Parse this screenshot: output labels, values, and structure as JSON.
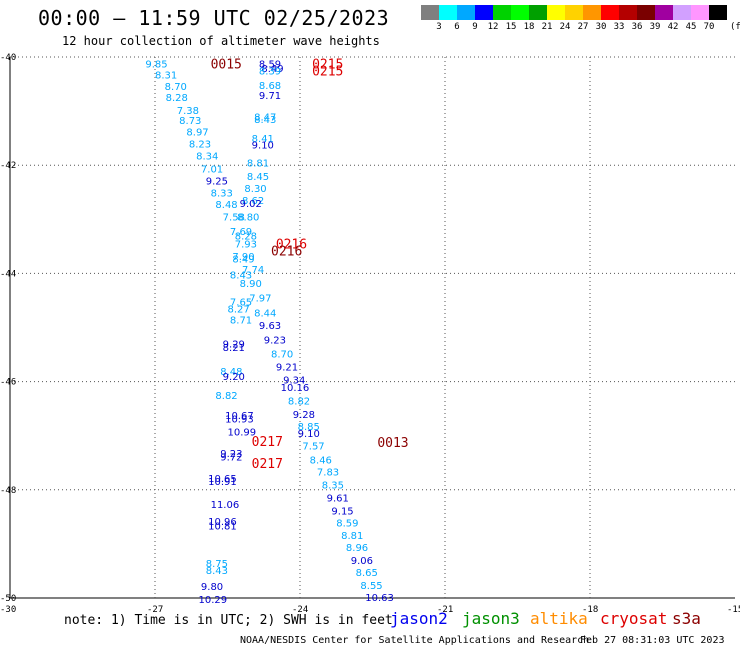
{
  "header": {
    "title": "00:00 – 11:59 UTC 02/25/2023",
    "subtitle": "12 hour collection of altimeter wave heights"
  },
  "colorbar": {
    "colors": [
      "#7f7f7f",
      "#00ffff",
      "#00a8ff",
      "#0000ff",
      "#00d200",
      "#00ff00",
      "#00a000",
      "#ffff00",
      "#ffd200",
      "#ff9600",
      "#ff0000",
      "#b40000",
      "#7a0000",
      "#a000a0",
      "#d2a0ff",
      "#ff96ff",
      "#000000"
    ],
    "labels": [
      "3",
      "6",
      "9",
      "12",
      "15",
      "18",
      "21",
      "24",
      "27",
      "30",
      "33",
      "36",
      "39",
      "42",
      "45",
      "70"
    ],
    "unit": "(ft)"
  },
  "axes": {
    "lon_ticks": [
      "-30",
      "-27",
      "-24",
      "-21",
      "-18",
      "-15"
    ],
    "lat_ticks": [
      "-40",
      "-42",
      "-44",
      "-46",
      "-48",
      "-50"
    ]
  },
  "footer": {
    "note": "note: 1) Time is in UTC; 2) SWH is in feet",
    "missions": [
      {
        "name": "jason2",
        "color": "#0000ee"
      },
      {
        "name": "jason3",
        "color": "#009000"
      },
      {
        "name": "altika",
        "color": "#ff8c00"
      },
      {
        "name": "cryosat",
        "color": "#dd0000"
      },
      {
        "name": "s3a",
        "color": "#8b0000"
      }
    ],
    "credit": "NOAA/NESDIS Center for Satellite Applications and Research",
    "timestamp": "Feb 27 08:31:03 UTC 2023"
  },
  "time_labels": [
    {
      "text": "0015",
      "lon": -25.85,
      "lat": -40.12,
      "color": "#8b0000"
    },
    {
      "text": "0215",
      "lon": -23.75,
      "lat": -40.12,
      "color": "#dd0000"
    },
    {
      "text": "0215",
      "lon": -23.75,
      "lat": -40.25,
      "color": "#dd0000"
    },
    {
      "text": "0216",
      "lon": -24.5,
      "lat": -43.45,
      "color": "#dd0000"
    },
    {
      "text": "0216",
      "lon": -24.6,
      "lat": -43.58,
      "color": "#8b0000"
    },
    {
      "text": "0217",
      "lon": -25.0,
      "lat": -47.1,
      "color": "#dd0000"
    },
    {
      "text": "0013",
      "lon": -22.4,
      "lat": -47.12,
      "color": "#8b0000"
    },
    {
      "text": "0217",
      "lon": -25.0,
      "lat": -47.5,
      "color": "#dd0000"
    }
  ],
  "swh_points": [
    {
      "v": "9.85",
      "lon": -27.2,
      "lat": -40.12,
      "color": "#00a8ff"
    },
    {
      "v": "8.31",
      "lon": -27.0,
      "lat": -40.32,
      "color": "#00a8ff"
    },
    {
      "v": "8.70",
      "lon": -26.8,
      "lat": -40.54,
      "color": "#00a8ff"
    },
    {
      "v": "8.28",
      "lon": -26.78,
      "lat": -40.74,
      "color": "#00a8ff"
    },
    {
      "v": "7.38",
      "lon": -26.55,
      "lat": -40.98,
      "color": "#00a8ff"
    },
    {
      "v": "8.73",
      "lon": -26.5,
      "lat": -41.16,
      "color": "#00a8ff"
    },
    {
      "v": "8.97",
      "lon": -26.35,
      "lat": -41.38,
      "color": "#00a8ff"
    },
    {
      "v": "8.23",
      "lon": -26.3,
      "lat": -41.6,
      "color": "#00a8ff"
    },
    {
      "v": "8.34",
      "lon": -26.15,
      "lat": -41.82,
      "color": "#00a8ff"
    },
    {
      "v": "7.01",
      "lon": -26.05,
      "lat": -42.06,
      "color": "#00a8ff"
    },
    {
      "v": "9.25",
      "lon": -25.95,
      "lat": -42.28,
      "color": "#0000cc"
    },
    {
      "v": "8.33",
      "lon": -25.85,
      "lat": -42.5,
      "color": "#00a8ff"
    },
    {
      "v": "8.48",
      "lon": -25.75,
      "lat": -42.72,
      "color": "#00a8ff"
    },
    {
      "v": "7.58",
      "lon": -25.6,
      "lat": -42.95,
      "color": "#00a8ff"
    },
    {
      "v": "7.69",
      "lon": -25.45,
      "lat": -43.22,
      "color": "#00a8ff"
    },
    {
      "v": "7.93",
      "lon": -25.35,
      "lat": -43.45,
      "color": "#00a8ff"
    },
    {
      "v": "7.90",
      "lon": -25.4,
      "lat": -43.68,
      "color": "#00a8ff"
    },
    {
      "v": "8.49",
      "lon": -25.4,
      "lat": -43.72,
      "color": "#00a8ff"
    },
    {
      "v": "7.74",
      "lon": -25.2,
      "lat": -43.92,
      "color": "#00a8ff"
    },
    {
      "v": "8.43",
      "lon": -25.45,
      "lat": -44.02,
      "color": "#00a8ff"
    },
    {
      "v": "7.65",
      "lon": -25.45,
      "lat": -44.52,
      "color": "#00a8ff"
    },
    {
      "v": "8.27",
      "lon": -25.5,
      "lat": -44.65,
      "color": "#00a8ff"
    },
    {
      "v": "8.71",
      "lon": -25.45,
      "lat": -44.85,
      "color": "#00a8ff"
    },
    {
      "v": "9.29",
      "lon": -25.6,
      "lat": -45.3,
      "color": "#0000cc"
    },
    {
      "v": "8.21",
      "lon": -25.6,
      "lat": -45.36,
      "color": "#0000cc"
    },
    {
      "v": "8.48",
      "lon": -25.65,
      "lat": -45.8,
      "color": "#00a8ff"
    },
    {
      "v": "9.20",
      "lon": -25.6,
      "lat": -45.9,
      "color": "#0000cc"
    },
    {
      "v": "8.82",
      "lon": -25.75,
      "lat": -46.25,
      "color": "#00a8ff"
    },
    {
      "v": "10.67",
      "lon": -25.55,
      "lat": -46.62,
      "color": "#0000cc"
    },
    {
      "v": "10.93",
      "lon": -25.55,
      "lat": -46.68,
      "color": "#0000cc"
    },
    {
      "v": "10.99",
      "lon": -25.5,
      "lat": -46.92,
      "color": "#0000cc"
    },
    {
      "v": "9.23",
      "lon": -25.65,
      "lat": -47.32,
      "color": "#0000cc"
    },
    {
      "v": "9.72",
      "lon": -25.65,
      "lat": -47.38,
      "color": "#0000cc"
    },
    {
      "v": "10.65",
      "lon": -25.9,
      "lat": -47.78,
      "color": "#0000cc"
    },
    {
      "v": "10.91",
      "lon": -25.9,
      "lat": -47.84,
      "color": "#0000cc"
    },
    {
      "v": "11.06",
      "lon": -25.85,
      "lat": -48.26,
      "color": "#0000cc"
    },
    {
      "v": "10.96",
      "lon": -25.9,
      "lat": -48.58,
      "color": "#0000cc"
    },
    {
      "v": "10.81",
      "lon": -25.9,
      "lat": -48.66,
      "color": "#0000cc"
    },
    {
      "v": "8.75",
      "lon": -25.95,
      "lat": -49.35,
      "color": "#00a8ff"
    },
    {
      "v": "8.43",
      "lon": -25.95,
      "lat": -49.48,
      "color": "#00a8ff"
    },
    {
      "v": "9.80",
      "lon": -26.05,
      "lat": -49.78,
      "color": "#0000cc"
    },
    {
      "v": "10.29",
      "lon": -26.1,
      "lat": -50.02,
      "color": "#0000cc"
    },
    {
      "v": "8.59",
      "lon": -24.85,
      "lat": -40.12,
      "color": "#0000cc"
    },
    {
      "v": "8.49",
      "lon": -24.8,
      "lat": -40.2,
      "color": "#0000cc"
    },
    {
      "v": "8.39",
      "lon": -24.85,
      "lat": -40.25,
      "color": "#00a8ff"
    },
    {
      "v": "8.68",
      "lon": -24.85,
      "lat": -40.52,
      "color": "#00a8ff"
    },
    {
      "v": "9.71",
      "lon": -24.85,
      "lat": -40.7,
      "color": "#0000cc"
    },
    {
      "v": "8.47",
      "lon": -24.95,
      "lat": -41.1,
      "color": "#00a8ff"
    },
    {
      "v": "8.43",
      "lon": -24.95,
      "lat": -41.15,
      "color": "#00a8ff"
    },
    {
      "v": "8.41",
      "lon": -25.0,
      "lat": -41.5,
      "color": "#00a8ff"
    },
    {
      "v": "9.10",
      "lon": -25.0,
      "lat": -41.62,
      "color": "#0000cc"
    },
    {
      "v": "8.81",
      "lon": -25.1,
      "lat": -41.95,
      "color": "#00a8ff"
    },
    {
      "v": "8.45",
      "lon": -25.1,
      "lat": -42.2,
      "color": "#00a8ff"
    },
    {
      "v": "8.30",
      "lon": -25.15,
      "lat": -42.42,
      "color": "#00a8ff"
    },
    {
      "v": "8.62",
      "lon": -25.2,
      "lat": -42.64,
      "color": "#00a8ff"
    },
    {
      "v": "9.02",
      "lon": -25.25,
      "lat": -42.7,
      "color": "#0000cc"
    },
    {
      "v": "8.80",
      "lon": -25.3,
      "lat": -42.95,
      "color": "#00a8ff"
    },
    {
      "v": "8.28",
      "lon": -25.35,
      "lat": -43.3,
      "color": "#00a8ff"
    },
    {
      "v": "8.90",
      "lon": -25.25,
      "lat": -44.18,
      "color": "#00a8ff"
    },
    {
      "v": "7.97",
      "lon": -25.05,
      "lat": -44.45,
      "color": "#00a8ff"
    },
    {
      "v": "8.44",
      "lon": -24.95,
      "lat": -44.72,
      "color": "#00a8ff"
    },
    {
      "v": "9.63",
      "lon": -24.85,
      "lat": -44.95,
      "color": "#0000cc"
    },
    {
      "v": "9.23",
      "lon": -24.75,
      "lat": -45.22,
      "color": "#0000cc"
    },
    {
      "v": "8.70",
      "lon": -24.6,
      "lat": -45.48,
      "color": "#00a8ff"
    },
    {
      "v": "9.21",
      "lon": -24.5,
      "lat": -45.72,
      "color": "#0000cc"
    },
    {
      "v": "9.34",
      "lon": -24.35,
      "lat": -45.96,
      "color": "#0000cc"
    },
    {
      "v": "10.16",
      "lon": -24.4,
      "lat": -46.1,
      "color": "#0000cc"
    },
    {
      "v": "8.82",
      "lon": -24.25,
      "lat": -46.35,
      "color": "#00a8ff"
    },
    {
      "v": "9.28",
      "lon": -24.15,
      "lat": -46.6,
      "color": "#0000cc"
    },
    {
      "v": "8.85",
      "lon": -24.05,
      "lat": -46.82,
      "color": "#00a8ff"
    },
    {
      "v": "9.10",
      "lon": -24.05,
      "lat": -46.95,
      "color": "#0000cc"
    },
    {
      "v": "7.57",
      "lon": -23.95,
      "lat": -47.18,
      "color": "#00a8ff"
    },
    {
      "v": "8.46",
      "lon": -23.8,
      "lat": -47.44,
      "color": "#00a8ff"
    },
    {
      "v": "7.83",
      "lon": -23.65,
      "lat": -47.66,
      "color": "#00a8ff"
    },
    {
      "v": "8.35",
      "lon": -23.55,
      "lat": -47.9,
      "color": "#00a8ff"
    },
    {
      "v": "9.61",
      "lon": -23.45,
      "lat": -48.14,
      "color": "#0000cc"
    },
    {
      "v": "9.15",
      "lon": -23.35,
      "lat": -48.38,
      "color": "#0000cc"
    },
    {
      "v": "8.59",
      "lon": -23.25,
      "lat": -48.6,
      "color": "#00a8ff"
    },
    {
      "v": "8.81",
      "lon": -23.15,
      "lat": -48.84,
      "color": "#00a8ff"
    },
    {
      "v": "8.96",
      "lon": -23.05,
      "lat": -49.06,
      "color": "#00a8ff"
    },
    {
      "v": "9.06",
      "lon": -22.95,
      "lat": -49.3,
      "color": "#0000cc"
    },
    {
      "v": "8.65",
      "lon": -22.85,
      "lat": -49.52,
      "color": "#00a8ff"
    },
    {
      "v": "8.55",
      "lon": -22.75,
      "lat": -49.76,
      "color": "#00a8ff"
    },
    {
      "v": "10.63",
      "lon": -22.65,
      "lat": -49.98,
      "color": "#0000cc"
    }
  ]
}
